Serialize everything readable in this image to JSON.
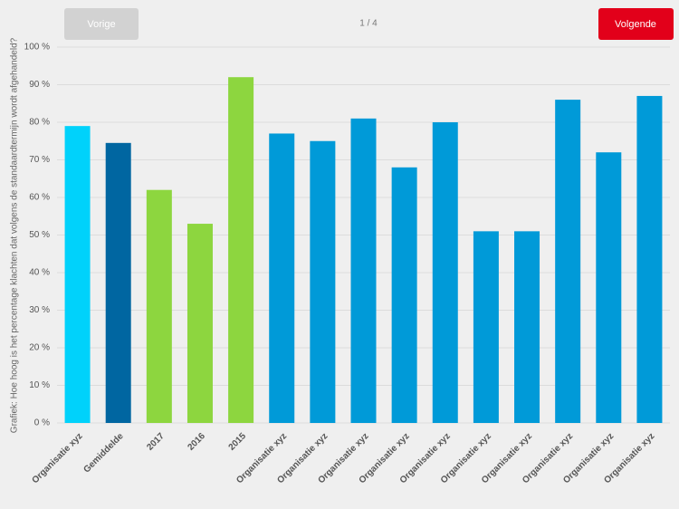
{
  "nav": {
    "previous": "Vorige",
    "page": "1 / 4",
    "next": "Volgende"
  },
  "chart_data": {
    "type": "bar",
    "y_label": "Grafiek: Hoe hoog is het percentage klachten dat volgens de standaardtermijn wordt afgehandeld?",
    "categories": [
      "Organisatie xyz",
      "Gemiddelde",
      "2017",
      "2016",
      "2015",
      "Organisatie xyz",
      "Organisatie xyz",
      "Organisatie xyz",
      "Organisatie xyz",
      "Organisatie xyz",
      "Organisatie xyz",
      "Organisatie xyz",
      "Organisatie xyz",
      "Organisatie xyz",
      "Organisatie xyz"
    ],
    "values": [
      79,
      74.5,
      62,
      53,
      92,
      77,
      75,
      81,
      68,
      80,
      51,
      51,
      86,
      72,
      87
    ],
    "colors": [
      "#00d2fb",
      "#0066a1",
      "#8dd63f",
      "#8dd63f",
      "#8dd63f",
      "#009ad8",
      "#009ad8",
      "#009ad8",
      "#009ad8",
      "#009ad8",
      "#009ad8",
      "#009ad8",
      "#009ad8",
      "#009ad8",
      "#009ad8"
    ],
    "ylim": [
      0,
      100
    ],
    "yticks": [
      {
        "value": 0,
        "label": "0 %"
      },
      {
        "value": 10,
        "label": "10 %"
      },
      {
        "value": 20,
        "label": "20 %"
      },
      {
        "value": 30,
        "label": "30 %"
      },
      {
        "value": 40,
        "label": "40 %"
      },
      {
        "value": 50,
        "label": "50 %"
      },
      {
        "value": 60,
        "label": "60 %"
      },
      {
        "value": 70,
        "label": "70 %"
      },
      {
        "value": 80,
        "label": "80 %"
      },
      {
        "value": 90,
        "label": "90 %"
      },
      {
        "value": 100,
        "label": "100 %"
      }
    ],
    "grid": true
  }
}
